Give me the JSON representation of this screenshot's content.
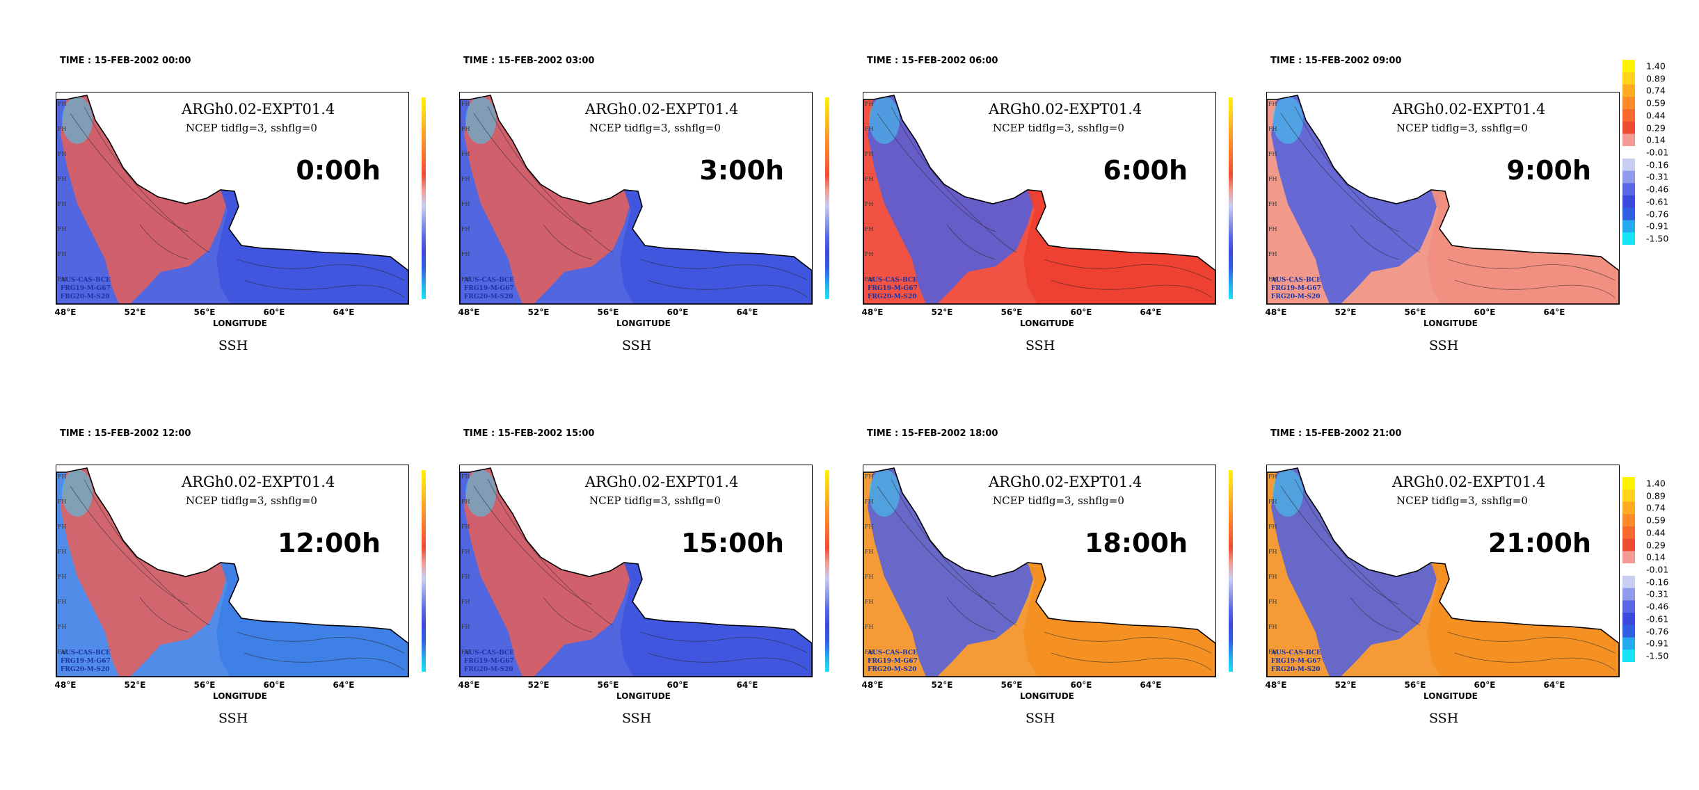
{
  "panels": [
    {
      "time": "TIME : 15-FEB-2002 00:00",
      "hour": "0:00h",
      "color_key": "neg"
    },
    {
      "time": "TIME : 15-FEB-2002 03:00",
      "hour": "3:00h",
      "color_key": "neg"
    },
    {
      "time": "TIME : 15-FEB-2002 06:00",
      "hour": "6:00h",
      "color_key": "red"
    },
    {
      "time": "TIME : 15-FEB-2002 09:00",
      "hour": "9:00h",
      "color_key": "salmon"
    },
    {
      "time": "TIME : 15-FEB-2002 12:00",
      "hour": "12:00h",
      "color_key": "neg2"
    },
    {
      "time": "TIME : 15-FEB-2002 15:00",
      "hour": "15:00h",
      "color_key": "neg"
    },
    {
      "time": "TIME : 15-FEB-2002 18:00",
      "hour": "18:00h",
      "color_key": "orange"
    },
    {
      "time": "TIME : 15-FEB-2002 21:00",
      "hour": "21:00h",
      "color_key": "orange"
    }
  ],
  "common": {
    "experiment": "ARGh0.02-EXPT01.4",
    "subtitle": "NCEP tidflg=3, sshflg=0",
    "xlabel": "LONGITUDE",
    "variable": "SSH",
    "credits": [
      "AUS-CAS-BCE",
      "FRG19-M-G67",
      "FRG20-M-S20"
    ],
    "lon_ticks": [
      "48°E",
      "52°E",
      "56°E",
      "60°E",
      "64°E"
    ],
    "lat_ticks": [
      "FH",
      "FH",
      "FH",
      "FH",
      "FH",
      "FH",
      "FH",
      "FH"
    ]
  },
  "colorbar": {
    "labels": [
      "1.40",
      "0.89",
      "0.74",
      "0.59",
      "0.44",
      "0.29",
      "0.14",
      "-0.01",
      "-0.16",
      "-0.31",
      "-0.46",
      "-0.61",
      "-0.76",
      "-0.91",
      "-1.50"
    ],
    "colors": [
      "#fff200",
      "#ffd21c",
      "#ffab24",
      "#ff8a2a",
      "#f86a2c",
      "#ee4c34",
      "#f39a94",
      "#ffffff",
      "#c8cdf2",
      "#8f9bea",
      "#5867e6",
      "#3b49dc",
      "#2f5fe2",
      "#25a9ef",
      "#19e3f7"
    ]
  },
  "colors": {
    "sea_neg": "#3f55dd",
    "sea_neg2": "#3d7fe6",
    "sea_red": "#ee4030",
    "sea_salmon": "#f08f80",
    "sea_orange": "#f39021",
    "gulf_red": "#e75f58",
    "gulf_blue": "#4d5fe0",
    "northwest_cyan": "#3fd0f2"
  }
}
